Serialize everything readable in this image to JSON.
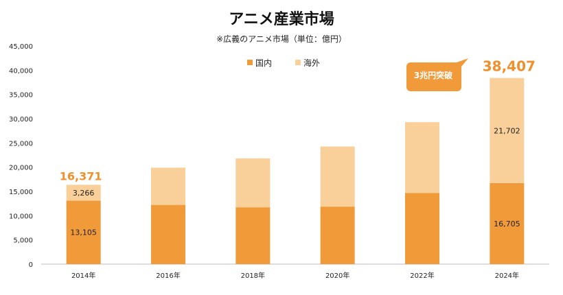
{
  "chart_data": {
    "type": "bar",
    "stacked": true,
    "title": "アニメ産業市場",
    "subtitle": "※広義のアニメ市場（単位：億円）",
    "categories": [
      "2014年",
      "2016年",
      "2018年",
      "2020年",
      "2022年",
      "2024年"
    ],
    "series": [
      {
        "name": "国内",
        "color": "#F19A3A",
        "values": [
          13105,
          12221,
          11722,
          11867,
          14685,
          16705
        ]
      },
      {
        "name": "海外",
        "color": "#F9CF9A",
        "values": [
          3266,
          7676,
          10092,
          12394,
          14592,
          21702
        ]
      }
    ],
    "data_labels": {
      "2014年": {
        "国内": "13,105",
        "海外": "3,266",
        "total": "16,371"
      },
      "2024年": {
        "国内": "16,705",
        "海外": "21,702",
        "total": "38,407"
      }
    },
    "annotation": "3兆円突破",
    "ylim": [
      0,
      45000
    ],
    "yticks": [
      "0",
      "5,000",
      "10,000",
      "15,000",
      "20,000",
      "25,000",
      "30,000",
      "35,000",
      "40,000",
      "45,000"
    ],
    "legend": "top-center",
    "grid": false,
    "total_label_color": "#F0902C"
  }
}
